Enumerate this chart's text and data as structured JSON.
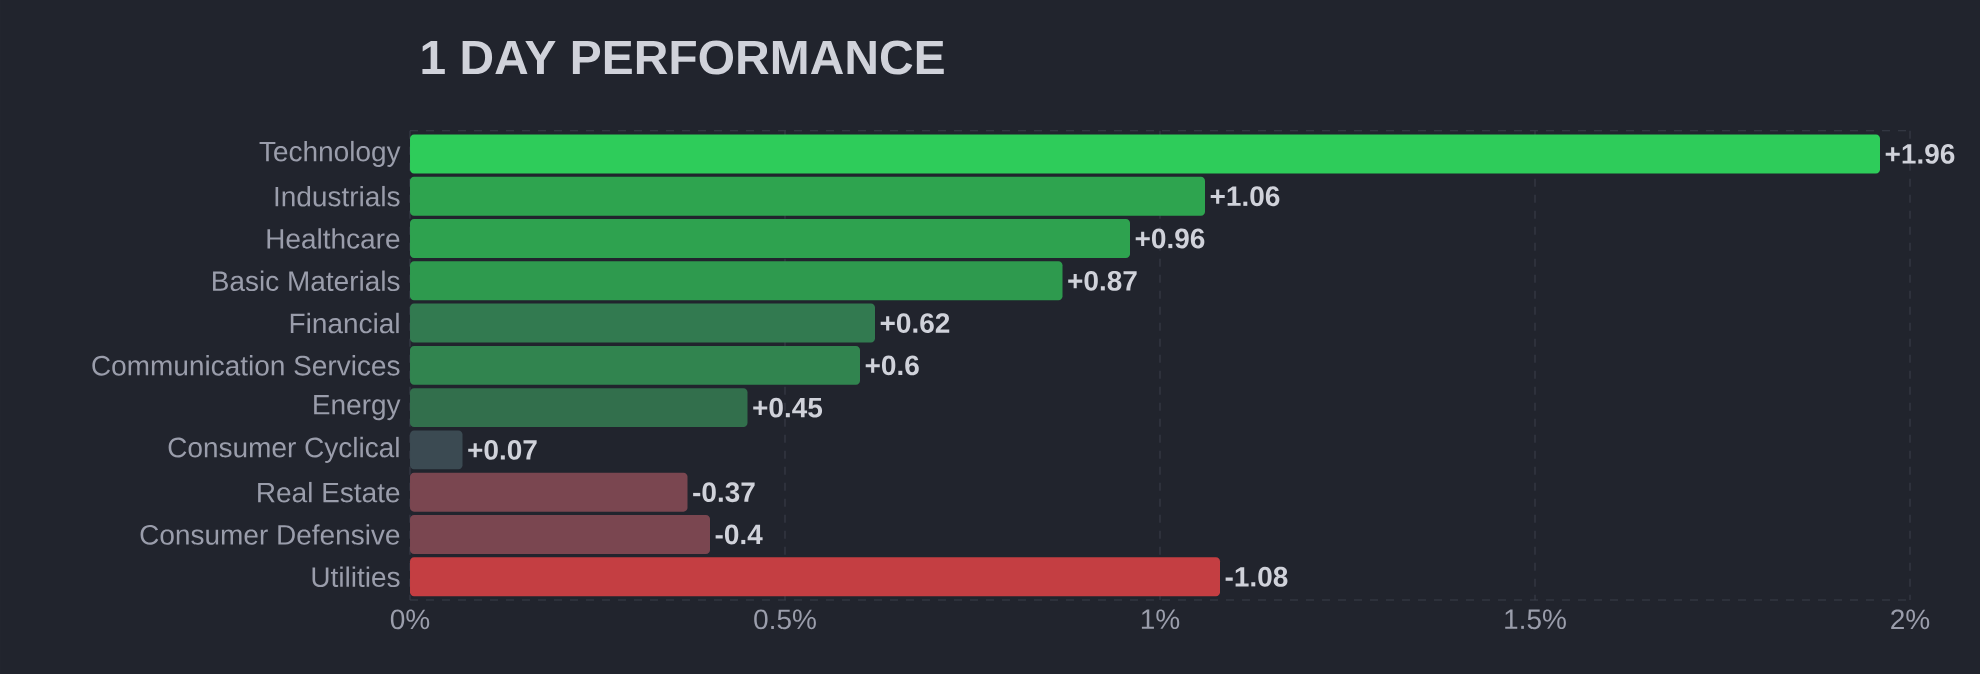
{
  "chart_data": {
    "type": "bar",
    "orientation": "horizontal",
    "title": "1 DAY PERFORMANCE",
    "categories": [
      "Technology",
      "Industrials",
      "Healthcare",
      "Basic Materials",
      "Financial",
      "Communication Services",
      "Energy",
      "Consumer Cyclical",
      "Real Estate",
      "Consumer Defensive",
      "Utilities"
    ],
    "values": [
      1.96,
      1.06,
      0.96,
      0.87,
      0.62,
      0.6,
      0.45,
      0.07,
      -0.37,
      -0.4,
      -1.08
    ],
    "base": [
      0,
      0,
      0,
      0,
      0,
      0,
      0,
      0,
      0.37,
      0.4,
      1.08
    ],
    "value_labels": [
      "+1.96",
      "+1.06",
      "+0.96",
      "+0.87",
      "+0.62",
      "+0.6",
      "+0.45",
      "+0.07",
      "-0.37",
      "-0.4",
      "-1.08"
    ],
    "colors": [
      "#2ecc5a",
      "#2ea44f",
      "#2ea24f",
      "#2e9a4e",
      "#327a50",
      "#31844f",
      "#326f4c",
      "#3b4a52",
      "#7a4650",
      "#7a4650",
      "#c43e42"
    ],
    "xlim": [
      0,
      2
    ],
    "xticks": [
      {
        "value": 0,
        "label": "0%"
      },
      {
        "value": 0.5,
        "label": "0.5%"
      },
      {
        "value": 1,
        "label": "1%"
      },
      {
        "value": 1.5,
        "label": "1.5%"
      },
      {
        "value": 2,
        "label": "2%"
      }
    ],
    "grid": "x"
  }
}
